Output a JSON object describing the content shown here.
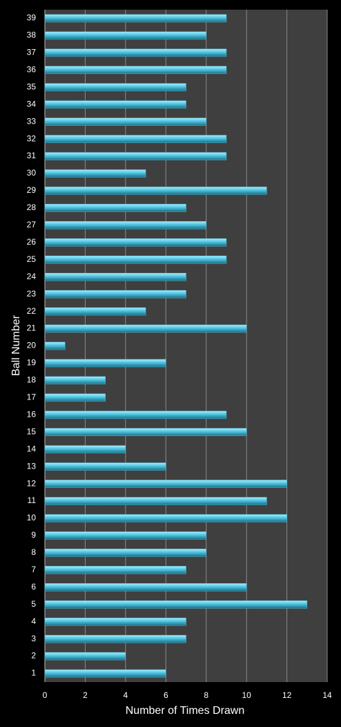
{
  "chart_data": {
    "type": "bar",
    "orientation": "horizontal",
    "x_label": "Number of Times Drawn",
    "y_label": "Ball Number",
    "categories": [
      "1",
      "2",
      "3",
      "4",
      "5",
      "6",
      "7",
      "8",
      "9",
      "10",
      "11",
      "12",
      "13",
      "14",
      "15",
      "16",
      "17",
      "18",
      "19",
      "20",
      "21",
      "22",
      "23",
      "24",
      "25",
      "26",
      "27",
      "28",
      "29",
      "30",
      "31",
      "32",
      "33",
      "34",
      "35",
      "36",
      "37",
      "38",
      "39"
    ],
    "values": [
      6,
      4,
      7,
      7,
      13,
      10,
      7,
      8,
      8,
      12,
      11,
      12,
      6,
      4,
      10,
      9,
      3,
      3,
      6,
      1,
      10,
      5,
      7,
      7,
      9,
      9,
      8,
      7,
      11,
      5,
      9,
      9,
      8,
      7,
      7,
      9,
      9,
      8,
      9
    ],
    "color": "#4cc3e0",
    "xlim": [
      0,
      14
    ],
    "xticks": [
      0,
      2,
      4,
      6,
      8,
      10,
      12,
      14
    ],
    "grid": true
  }
}
